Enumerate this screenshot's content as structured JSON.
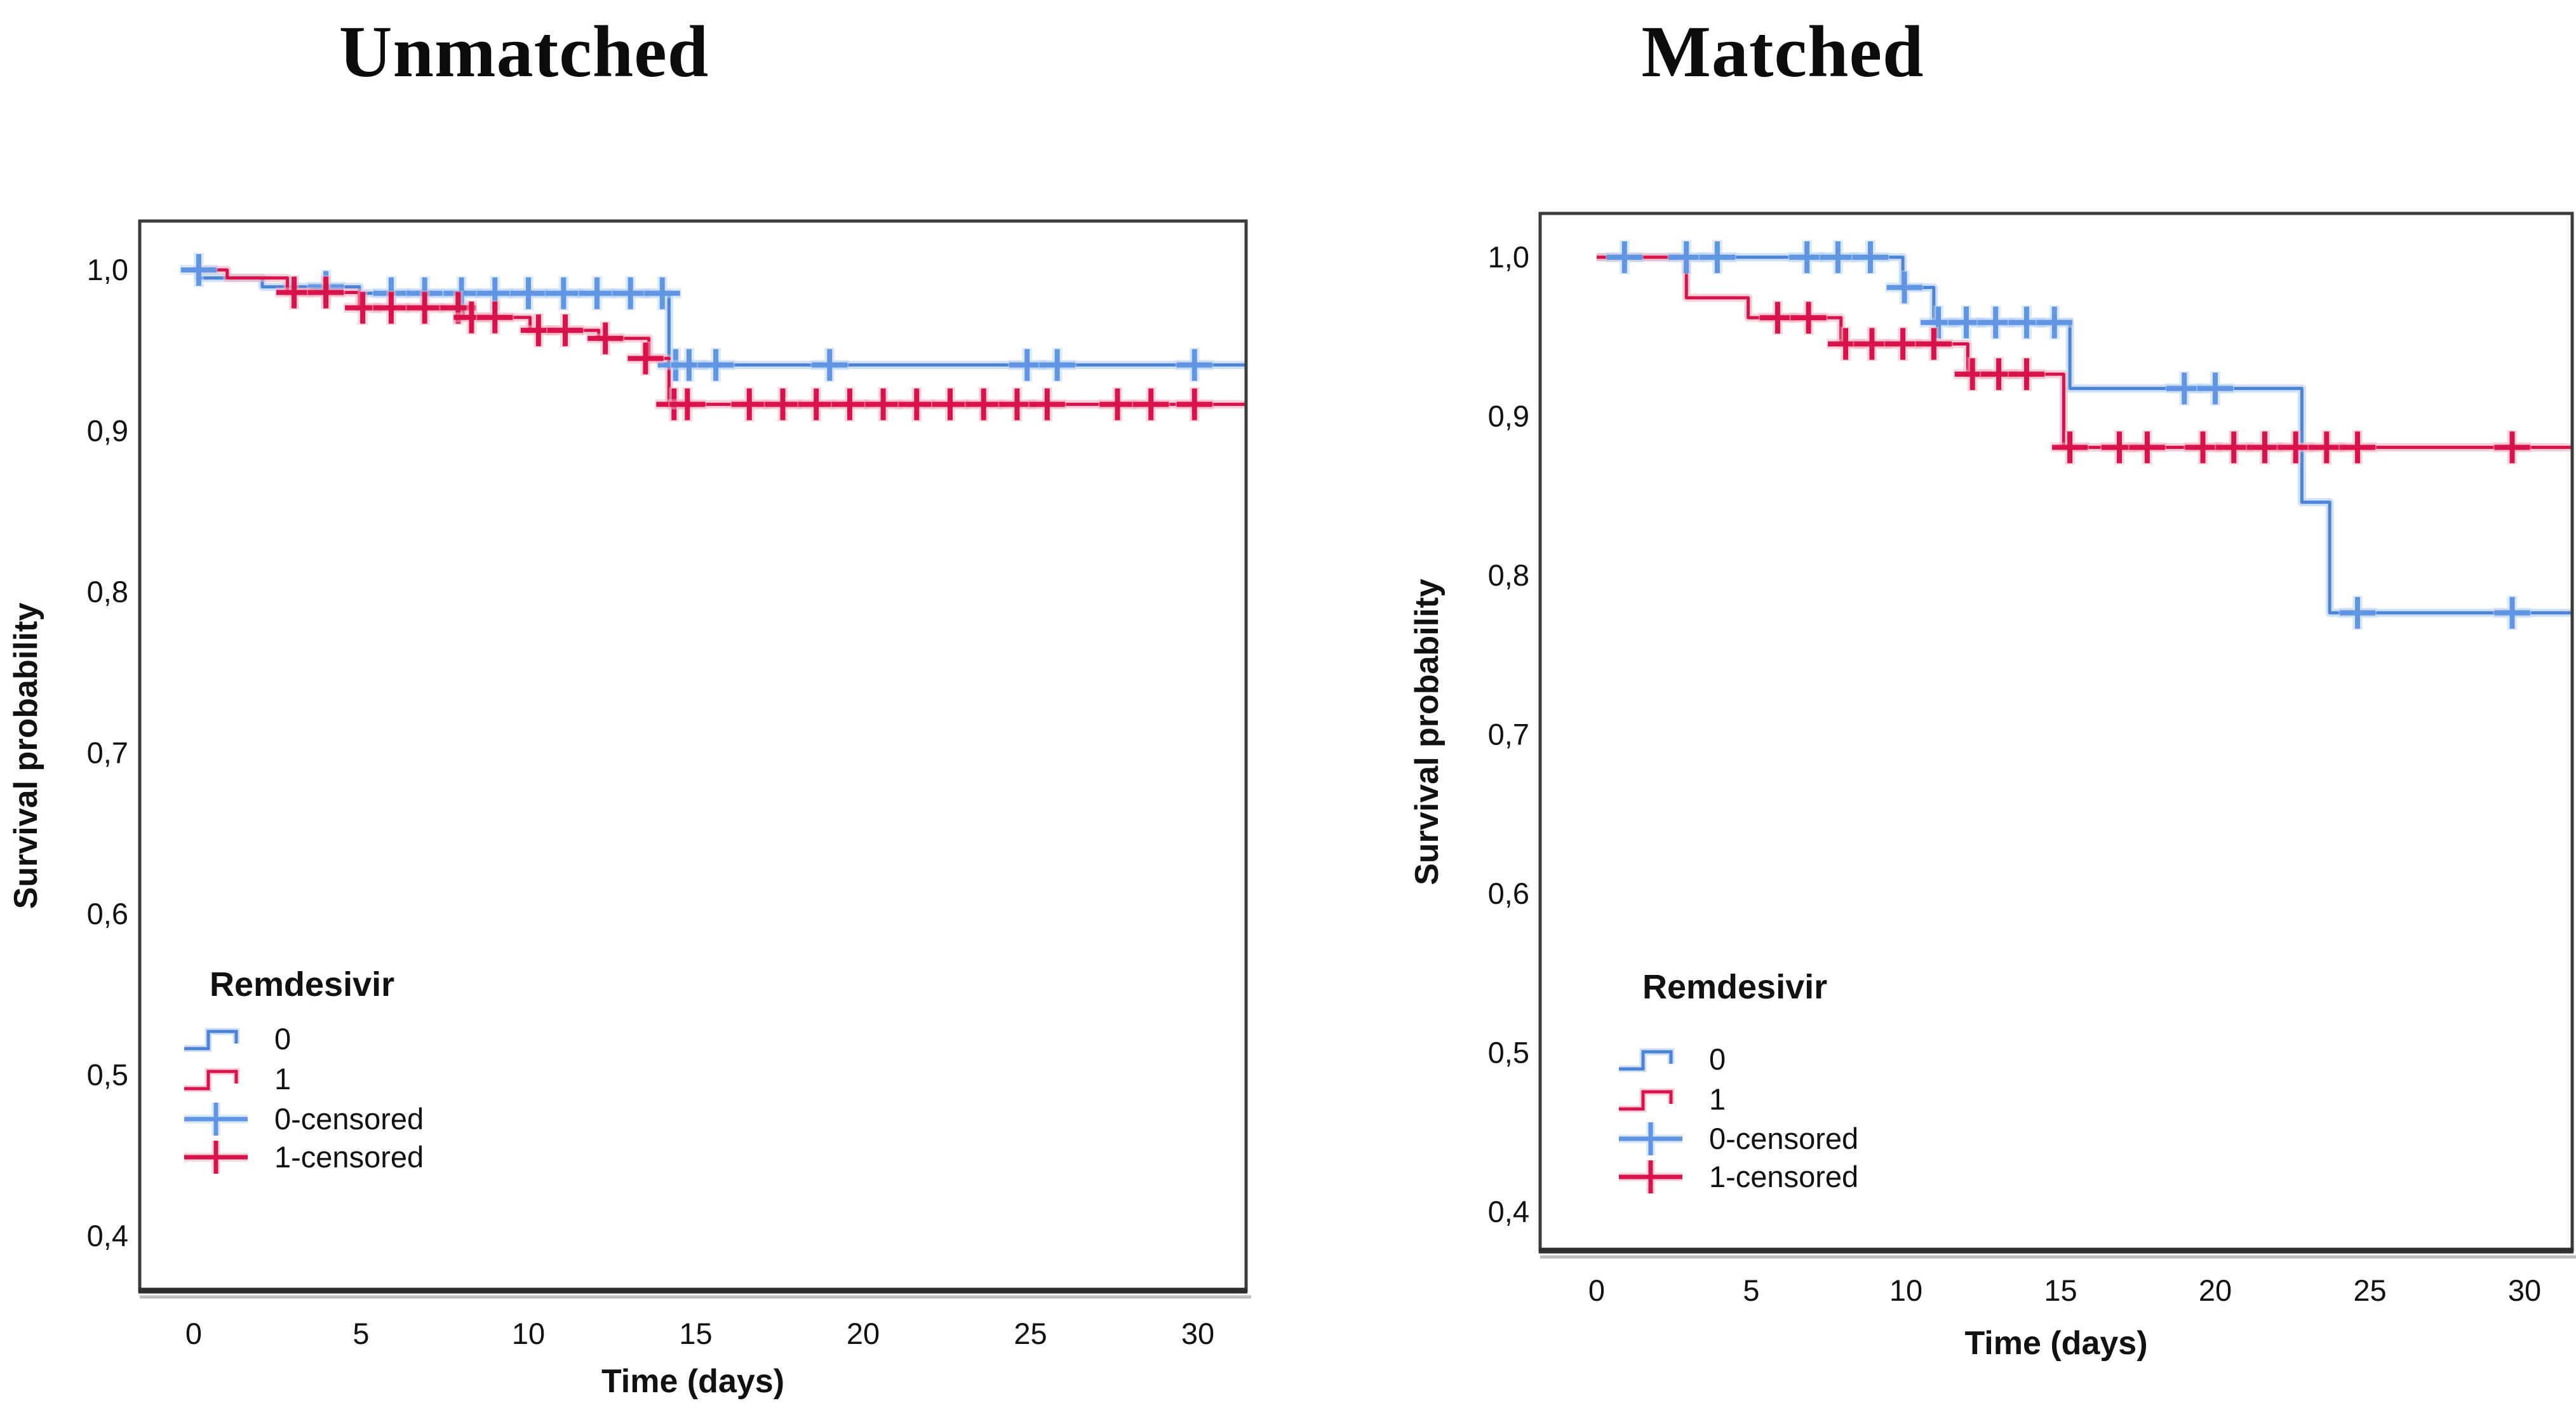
{
  "figure": {
    "background": "#ffffff",
    "frame_color": "#3c3c3c",
    "shadow_color": "#bdbdbd",
    "text_color": "#111111"
  },
  "chart_data": [
    {
      "type": "line",
      "subtype": "kaplan_meier_step",
      "title": "Unmatched",
      "xlabel": "Time (days)",
      "ylabel": "Survival probability",
      "x_ticks": [
        0,
        5,
        10,
        15,
        20,
        25,
        30
      ],
      "x_tick_labels": [
        "0",
        "5",
        "10",
        "15",
        "20",
        "25",
        "30"
      ],
      "y_ticks": [
        1.0,
        0.9,
        0.8,
        0.7,
        0.6,
        0.5,
        0.4
      ],
      "y_tick_labels": [
        "1,0",
        "0,9",
        "0,8",
        "0,7",
        "0,6",
        "0,5",
        "0,4"
      ],
      "xlim": [
        -1.6,
        31.4
      ],
      "ylim": [
        0.366,
        1.03
      ],
      "grid": false,
      "legend": {
        "title": "Remdesivir",
        "position": "inside-lower-left",
        "entries": [
          {
            "label": "0",
            "type": "step",
            "color": "#4c83d6"
          },
          {
            "label": "1",
            "type": "step",
            "color": "#d8124b"
          },
          {
            "label": "0-censored",
            "type": "plus",
            "color": "#5f95e2"
          },
          {
            "label": "1-censored",
            "type": "plus",
            "color": "#d8124b"
          }
        ]
      },
      "series": [
        {
          "name": "0",
          "color": "#4c83d6",
          "halo": "#aac9f0",
          "censor_color": "#5f95e2",
          "censor_halo": "#b9d4f4",
          "steps": [
            [
              0,
              1.0
            ],
            [
              0.15,
              0.995
            ],
            [
              2.05,
              0.9895
            ],
            [
              4.95,
              0.9855
            ],
            [
              14.2,
              0.941
            ]
          ],
          "end_t": 31.4,
          "censors": [
            [
              0.15,
              1.0
            ],
            [
              3.95,
              0.9895
            ],
            [
              5.9,
              0.9855
            ],
            [
              6.9,
              0.9855
            ],
            [
              8.0,
              0.9855
            ],
            [
              9.0,
              0.9855
            ],
            [
              10.0,
              0.9855
            ],
            [
              11.05,
              0.9855
            ],
            [
              12.05,
              0.9855
            ],
            [
              13.05,
              0.9855
            ],
            [
              14.0,
              0.9855
            ],
            [
              14.4,
              0.941
            ],
            [
              14.8,
              0.941
            ],
            [
              15.6,
              0.941
            ],
            [
              19.0,
              0.941
            ],
            [
              24.9,
              0.941
            ],
            [
              25.8,
              0.941
            ],
            [
              29.9,
              0.941
            ]
          ]
        },
        {
          "name": "1",
          "color": "#d8124b",
          "halo": "#f2a9bc",
          "censor_color": "#d8124b",
          "censor_halo": "#f3b0c0",
          "steps": [
            [
              0,
              1.0
            ],
            [
              1.0,
              0.995
            ],
            [
              2.8,
              0.986
            ],
            [
              4.95,
              0.9765
            ],
            [
              8.05,
              0.9705
            ],
            [
              10.05,
              0.9625
            ],
            [
              12.1,
              0.9575
            ],
            [
              13.6,
              0.945
            ],
            [
              14.2,
              0.9165
            ]
          ],
          "end_t": 31.4,
          "censors": [
            [
              3.0,
              0.986
            ],
            [
              3.95,
              0.986
            ],
            [
              5.05,
              0.9765
            ],
            [
              5.9,
              0.9765
            ],
            [
              6.9,
              0.9765
            ],
            [
              7.9,
              0.9765
            ],
            [
              8.3,
              0.9705
            ],
            [
              9.0,
              0.9705
            ],
            [
              10.3,
              0.9625
            ],
            [
              11.1,
              0.9625
            ],
            [
              12.3,
              0.9575
            ],
            [
              13.5,
              0.945
            ],
            [
              14.35,
              0.9165
            ],
            [
              14.75,
              0.9165
            ],
            [
              16.6,
              0.9165
            ],
            [
              17.6,
              0.9165
            ],
            [
              18.6,
              0.9165
            ],
            [
              19.6,
              0.9165
            ],
            [
              20.6,
              0.9165
            ],
            [
              21.6,
              0.9165
            ],
            [
              22.6,
              0.9165
            ],
            [
              23.6,
              0.9165
            ],
            [
              24.6,
              0.9165
            ],
            [
              25.5,
              0.9165
            ],
            [
              27.6,
              0.9165
            ],
            [
              28.6,
              0.9165
            ],
            [
              29.9,
              0.9165
            ]
          ]
        }
      ]
    },
    {
      "type": "line",
      "subtype": "kaplan_meier_step",
      "title": "Matched",
      "xlabel": "Time (days)",
      "ylabel": "Survival probability",
      "x_ticks": [
        0,
        5,
        10,
        15,
        20,
        25,
        30
      ],
      "x_tick_labels": [
        "0",
        "5",
        "10",
        "15",
        "20",
        "25",
        "30"
      ],
      "y_ticks": [
        1.0,
        0.9,
        0.8,
        0.7,
        0.6,
        0.5,
        0.4
      ],
      "y_tick_labels": [
        "1,0",
        "0,9",
        "0,8",
        "0,7",
        "0,6",
        "0,5",
        "0,4"
      ],
      "xlim": [
        -1.8,
        31.6
      ],
      "ylim": [
        0.376,
        1.028
      ],
      "grid": false,
      "legend": {
        "title": "Remdesivir",
        "position": "inside-lower-left",
        "entries": [
          {
            "label": "0",
            "type": "step",
            "color": "#4c83d6"
          },
          {
            "label": "1",
            "type": "step",
            "color": "#d8124b"
          },
          {
            "label": "0-censored",
            "type": "plus",
            "color": "#5f95e2"
          },
          {
            "label": "1-censored",
            "type": "plus",
            "color": "#d8124b"
          }
        ]
      },
      "series": [
        {
          "name": "0",
          "color": "#4c83d6",
          "halo": "#aac9f0",
          "censor_color": "#5f95e2",
          "censor_halo": "#b9d4f4",
          "steps": [
            [
              0,
              1.0
            ],
            [
              9.9,
              0.981
            ],
            [
              10.9,
              0.959
            ],
            [
              15.3,
              0.9175
            ],
            [
              22.8,
              0.846
            ],
            [
              23.7,
              0.7765
            ]
          ],
          "end_t": 31.55,
          "censors": [
            [
              0.9,
              1.0
            ],
            [
              2.9,
              1.0
            ],
            [
              3.9,
              1.0
            ],
            [
              6.8,
              1.0
            ],
            [
              7.8,
              1.0
            ],
            [
              8.85,
              1.0
            ],
            [
              9.95,
              0.981
            ],
            [
              11.05,
              0.959
            ],
            [
              11.95,
              0.959
            ],
            [
              12.9,
              0.959
            ],
            [
              13.9,
              0.959
            ],
            [
              14.8,
              0.959
            ],
            [
              19.0,
              0.9175
            ],
            [
              20.0,
              0.9175
            ],
            [
              24.6,
              0.7765
            ],
            [
              29.6,
              0.7765
            ]
          ]
        },
        {
          "name": "1",
          "color": "#d8124b",
          "halo": "#f2a9bc",
          "censor_color": "#d8124b",
          "censor_halo": "#f3b0c0",
          "steps": [
            [
              0,
              1.0
            ],
            [
              2.9,
              0.9745
            ],
            [
              4.9,
              0.962
            ],
            [
              7.9,
              0.9455
            ],
            [
              12.0,
              0.9265
            ],
            [
              15.1,
              0.8805
            ]
          ],
          "end_t": 31.55,
          "censors": [
            [
              5.85,
              0.962
            ],
            [
              6.85,
              0.962
            ],
            [
              8.05,
              0.9455
            ],
            [
              8.9,
              0.9455
            ],
            [
              9.9,
              0.9455
            ],
            [
              10.9,
              0.9455
            ],
            [
              12.15,
              0.9265
            ],
            [
              13.0,
              0.9265
            ],
            [
              13.9,
              0.9265
            ],
            [
              15.3,
              0.8805
            ],
            [
              16.9,
              0.8805
            ],
            [
              17.8,
              0.8805
            ],
            [
              19.6,
              0.8805
            ],
            [
              20.6,
              0.8805
            ],
            [
              21.6,
              0.8805
            ],
            [
              22.6,
              0.8805
            ],
            [
              23.6,
              0.8805
            ],
            [
              24.6,
              0.8805
            ],
            [
              29.6,
              0.8805
            ]
          ]
        }
      ]
    }
  ]
}
